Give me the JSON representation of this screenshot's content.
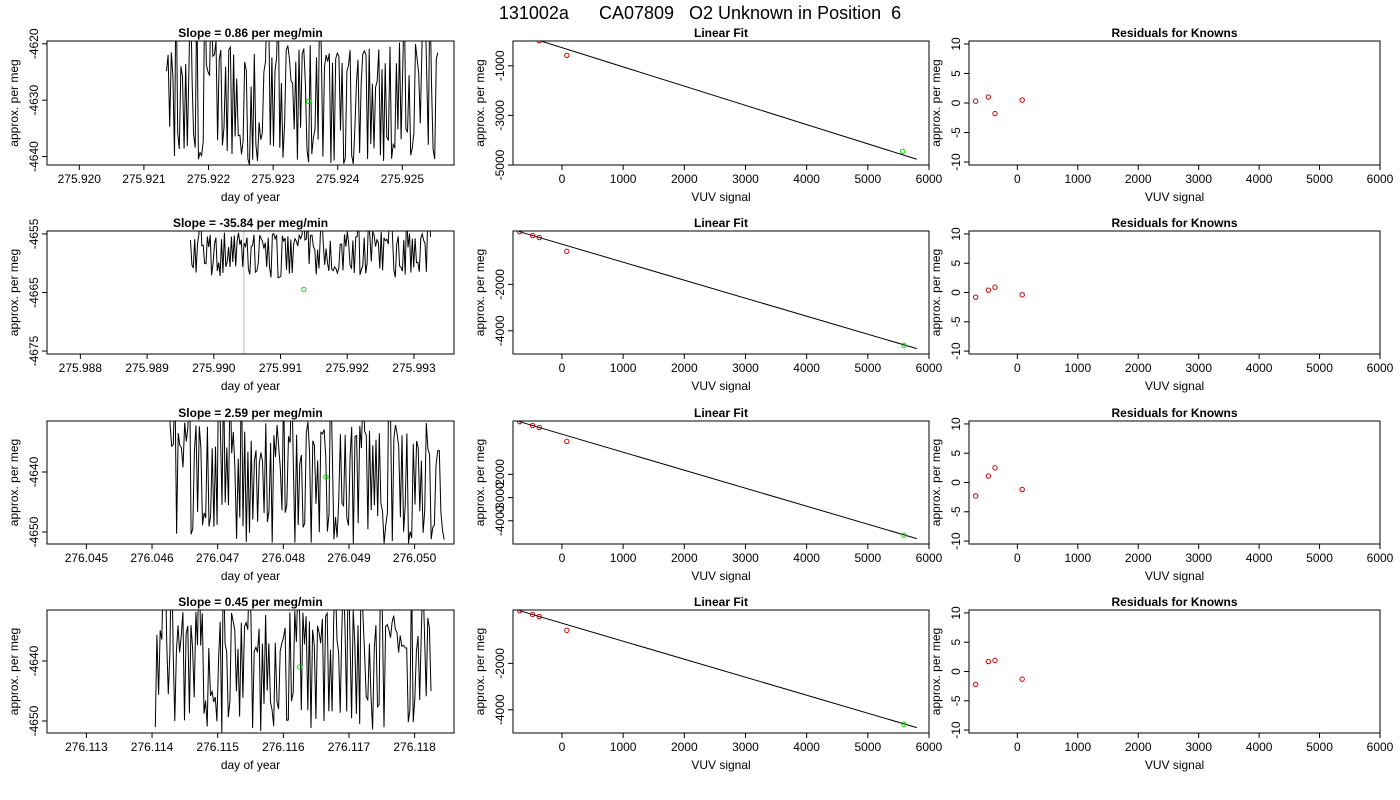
{
  "title": "131002a      CA07809   O2 Unknown in Position  6",
  "colors": {
    "line": "#000000",
    "known_points": "#cc0000",
    "unknown_point": "#00dd00",
    "gap_line": "#bbbbbb"
  },
  "chart_data": [
    {
      "type": "line",
      "panel": "timeseries",
      "row": 1,
      "title": "Slope =  0.86  per meg/min",
      "xlabel": "day of year",
      "ylabel": "approx. per meg",
      "xlim": [
        275.9195,
        275.9258
      ],
      "ylim": [
        -4641.5,
        -4619.5
      ],
      "xticks": [
        "275.920",
        "275.921",
        "275.922",
        "275.923",
        "275.924",
        "275.925"
      ],
      "yticks": [
        "-4620",
        "-4630",
        "-4640"
      ],
      "data_extent_x": [
        275.92135,
        275.92555
      ],
      "noise_band_y": [
        -4641.5,
        -4619.5
      ],
      "gap_x": [],
      "unknown_point": {
        "x": 275.92355,
        "y": -4630.2
      }
    },
    {
      "type": "line",
      "panel": "linear_fit",
      "row": 1,
      "title": "Linear Fit",
      "xlabel": "VUV signal",
      "ylabel": "approx. per meg",
      "xlim": [
        -800,
        6000
      ],
      "ylim": [
        -5000,
        0
      ],
      "xticks": [
        "0",
        "1000",
        "2000",
        "3000",
        "4000",
        "5000",
        "6000"
      ],
      "yticks": [
        "-1000",
        "-3000",
        "-5000"
      ],
      "fit_line": {
        "x": [
          -700,
          5800
        ],
        "y": [
          275,
          -4768
        ]
      },
      "known_points": [
        {
          "x": -690,
          "y": 271
        },
        {
          "x": -480,
          "y": 105
        },
        {
          "x": -370,
          "y": 18
        },
        {
          "x": 80,
          "y": -577
        }
      ],
      "unknown_point": {
        "x": 5570,
        "y": -4448
      }
    },
    {
      "type": "scatter",
      "panel": "residuals",
      "row": 1,
      "title": "Residuals for Knowns",
      "xlabel": "VUV signal",
      "ylabel": "approx. per meg",
      "xlim": [
        -800,
        6000
      ],
      "ylim": [
        -10.5,
        10.5
      ],
      "xticks": [
        "0",
        "1000",
        "2000",
        "3000",
        "4000",
        "5000",
        "6000"
      ],
      "yticks": [
        "10",
        "5",
        "0",
        "-5",
        "-10"
      ],
      "points": [
        {
          "x": -690,
          "y": 0.3
        },
        {
          "x": -480,
          "y": 1.0
        },
        {
          "x": -370,
          "y": -1.8
        },
        {
          "x": 80,
          "y": 0.5
        }
      ]
    },
    {
      "type": "line",
      "panel": "timeseries",
      "row": 2,
      "title": "Slope =  -35.84  per meg/min",
      "xlabel": "day of year",
      "ylabel": "approx. per meg",
      "xlim": [
        275.9875,
        275.9936
      ],
      "ylim": [
        -4675.5,
        -4654.5
      ],
      "xticks": [
        "275.988",
        "275.989",
        "275.990",
        "275.991",
        "275.992",
        "275.993"
      ],
      "yticks": [
        "-4655",
        "-4665",
        "-4675"
      ],
      "data_extent_x": [
        275.98965,
        275.99325
      ],
      "noise_band_y": [
        -4662.5,
        -4654.5
      ],
      "gap_x": [
        275.99045
      ],
      "unknown_point": {
        "x": 275.99135,
        "y": -4664.5
      }
    },
    {
      "type": "line",
      "panel": "linear_fit",
      "row": 2,
      "title": "Linear Fit",
      "xlabel": "VUV signal",
      "ylabel": "approx. per meg",
      "xlim": [
        -800,
        6000
      ],
      "ylim": [
        -5000,
        300
      ],
      "xticks": [
        "0",
        "1000",
        "2000",
        "3000",
        "4000",
        "5000",
        "6000"
      ],
      "yticks": [
        "-2000",
        "-4000"
      ],
      "fit_line": {
        "x": [
          -700,
          5800
        ],
        "y": [
          275,
          -4768
        ]
      },
      "known_points": [
        {
          "x": -690,
          "y": 271
        },
        {
          "x": -480,
          "y": 105
        },
        {
          "x": -370,
          "y": 18
        },
        {
          "x": 80,
          "y": -577
        }
      ],
      "unknown_point": {
        "x": 5590,
        "y": -4620
      }
    },
    {
      "type": "scatter",
      "panel": "residuals",
      "row": 2,
      "title": "Residuals for Knowns",
      "xlabel": "VUV signal",
      "ylabel": "approx. per meg",
      "xlim": [
        -800,
        6000
      ],
      "ylim": [
        -10.5,
        10.5
      ],
      "xticks": [
        "0",
        "1000",
        "2000",
        "3000",
        "4000",
        "5000",
        "6000"
      ],
      "yticks": [
        "10",
        "5",
        "0",
        "-5",
        "-10"
      ],
      "points": [
        {
          "x": -690,
          "y": -0.8
        },
        {
          "x": -480,
          "y": 0.4
        },
        {
          "x": -370,
          "y": 0.9
        },
        {
          "x": 80,
          "y": -0.4
        }
      ]
    },
    {
      "type": "line",
      "panel": "timeseries",
      "row": 3,
      "title": "Slope =  2.59  per meg/min",
      "xlabel": "day of year",
      "ylabel": "approx. per meg",
      "xlim": [
        276.0444,
        276.0506
      ],
      "ylim": [
        -4652,
        -4631.5
      ],
      "xticks": [
        "276.045",
        "276.046",
        "276.047",
        "276.048",
        "276.049",
        "276.050"
      ],
      "yticks": [
        "-4640",
        "-4650"
      ],
      "data_extent_x": [
        276.04625,
        276.05045
      ],
      "noise_band_y": [
        -4652,
        -4631.5
      ],
      "gap_x": [],
      "unknown_point": {
        "x": 276.04865,
        "y": -4640.8
      }
    },
    {
      "type": "line",
      "panel": "linear_fit",
      "row": 3,
      "title": "Linear Fit",
      "xlabel": "VUV signal",
      "ylabel": "approx. per meg",
      "xlim": [
        -800,
        6000
      ],
      "ylim": [
        -5000,
        300
      ],
      "xticks": [
        "0",
        "1000",
        "2000",
        "3000",
        "4000",
        "5000",
        "6000"
      ],
      "yticks": [
        "-2000",
        "-3000",
        "-4000"
      ],
      "fit_line": {
        "x": [
          -700,
          5800
        ],
        "y": [
          275,
          -4768
        ]
      },
      "known_points": [
        {
          "x": -690,
          "y": 271
        },
        {
          "x": -480,
          "y": 105
        },
        {
          "x": -370,
          "y": 18
        },
        {
          "x": 80,
          "y": -577
        }
      ],
      "unknown_point": {
        "x": 5590,
        "y": -4620
      }
    },
    {
      "type": "scatter",
      "panel": "residuals",
      "row": 3,
      "title": "Residuals for Knowns",
      "xlabel": "VUV signal",
      "ylabel": "approx. per meg",
      "xlim": [
        -800,
        6000
      ],
      "ylim": [
        -10.5,
        10.5
      ],
      "xticks": [
        "0",
        "1000",
        "2000",
        "3000",
        "4000",
        "5000",
        "6000"
      ],
      "yticks": [
        "10",
        "5",
        "0",
        "-5",
        "-10"
      ],
      "points": [
        {
          "x": -690,
          "y": -2.3
        },
        {
          "x": -480,
          "y": 1.1
        },
        {
          "x": -370,
          "y": 2.5
        },
        {
          "x": 80,
          "y": -1.2
        }
      ]
    },
    {
      "type": "line",
      "panel": "timeseries",
      "row": 4,
      "title": "Slope =  0.45  per meg/min",
      "xlabel": "day of year",
      "ylabel": "approx. per meg",
      "xlim": [
        276.1124,
        276.1186
      ],
      "ylim": [
        -4652,
        -4631.5
      ],
      "xticks": [
        "276.113",
        "276.114",
        "276.115",
        "276.116",
        "276.117",
        "276.118"
      ],
      "yticks": [
        "-4640",
        "-4650"
      ],
      "data_extent_x": [
        276.11405,
        276.11825
      ],
      "noise_band_y": [
        -4652,
        -4631.5
      ],
      "gap_x": [],
      "unknown_point": {
        "x": 276.11625,
        "y": -4641.0
      }
    },
    {
      "type": "line",
      "panel": "linear_fit",
      "row": 4,
      "title": "Linear Fit",
      "xlabel": "VUV signal",
      "ylabel": "approx. per meg",
      "xlim": [
        -800,
        6000
      ],
      "ylim": [
        -5000,
        300
      ],
      "xticks": [
        "0",
        "1000",
        "2000",
        "3000",
        "4000",
        "5000",
        "6000"
      ],
      "yticks": [
        "-2000",
        "-4000"
      ],
      "fit_line": {
        "x": [
          -700,
          5800
        ],
        "y": [
          275,
          -4768
        ]
      },
      "known_points": [
        {
          "x": -690,
          "y": 271
        },
        {
          "x": -480,
          "y": 105
        },
        {
          "x": -370,
          "y": 18
        },
        {
          "x": 80,
          "y": -577
        }
      ],
      "unknown_point": {
        "x": 5590,
        "y": -4620
      }
    },
    {
      "type": "scatter",
      "panel": "residuals",
      "row": 4,
      "title": "Residuals for Knowns",
      "xlabel": "VUV signal",
      "ylabel": "approx. per meg",
      "xlim": [
        -800,
        6000
      ],
      "ylim": [
        -10.5,
        10.5
      ],
      "xticks": [
        "0",
        "1000",
        "2000",
        "3000",
        "4000",
        "5000",
        "6000"
      ],
      "yticks": [
        "10",
        "5",
        "0",
        "-5",
        "-10"
      ],
      "points": [
        {
          "x": -690,
          "y": -2.2
        },
        {
          "x": -480,
          "y": 1.7
        },
        {
          "x": -370,
          "y": 1.9
        },
        {
          "x": 80,
          "y": -1.3
        }
      ]
    }
  ]
}
